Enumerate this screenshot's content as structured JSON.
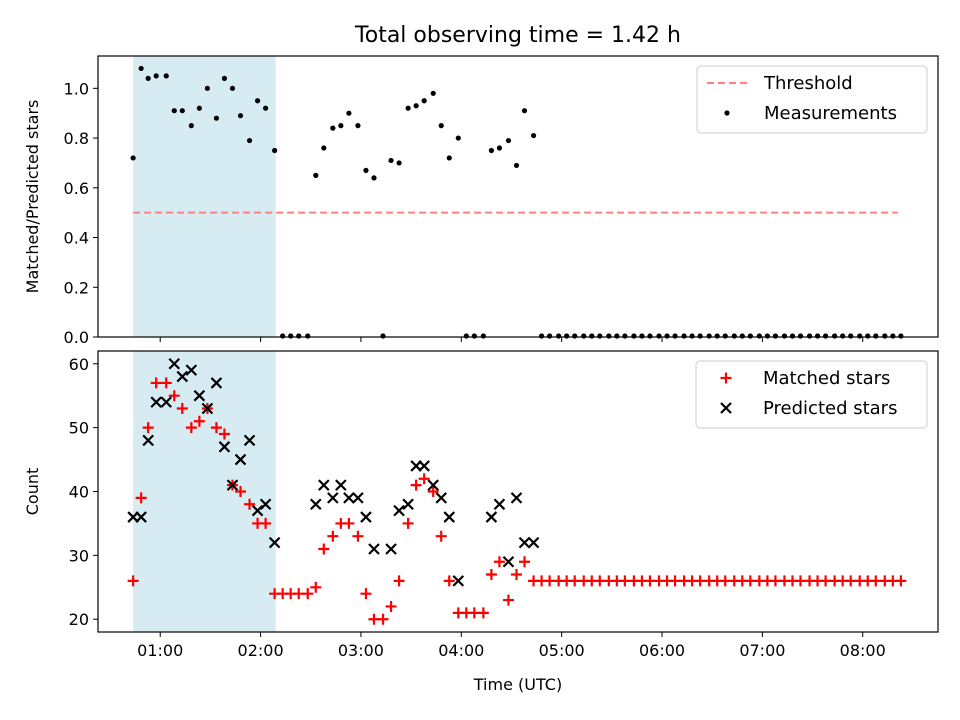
{
  "title": "Total observing time = 1.42 h",
  "colors": {
    "threshold": "#ff8080",
    "measurement": "#000000",
    "matched": "#ff0000",
    "predicted": "#000000",
    "shade": "#add8e6"
  },
  "chart_data": [
    {
      "type": "scatter",
      "ylabel": "Matched/Predicted stars",
      "xlabel": "",
      "xtick_labels": [
        "01:00",
        "02:00",
        "03:00",
        "04:00",
        "05:00",
        "06:00",
        "07:00",
        "08:00"
      ],
      "xlim_hours": [
        0.38,
        8.75
      ],
      "ylim": [
        0,
        1.13
      ],
      "yticks": [
        0.0,
        0.2,
        0.4,
        0.6,
        0.8,
        1.0
      ],
      "ytick_labels": [
        "0.0",
        "0.2",
        "0.4",
        "0.6",
        "0.8",
        "1.0"
      ],
      "shaded_span_hours": [
        0.73,
        2.15
      ],
      "legend": {
        "placement": "top-right",
        "entries": [
          "Threshold",
          "Measurements"
        ]
      },
      "series": [
        {
          "name": "Threshold",
          "kind": "dashed-line",
          "x": [
            0.73,
            8.35
          ],
          "y": [
            0.5,
            0.5
          ]
        },
        {
          "name": "Measurements",
          "kind": "dot",
          "x": [
            0.73,
            0.81,
            0.88,
            0.96,
            1.06,
            1.14,
            1.22,
            1.31,
            1.39,
            1.47,
            1.56,
            1.64,
            1.72,
            1.8,
            1.89,
            1.97,
            2.05,
            2.14,
            2.22,
            2.3,
            2.38,
            2.47,
            2.55,
            2.63,
            2.72,
            2.8,
            2.88,
            2.97,
            3.05,
            3.13,
            3.22,
            3.3,
            3.38,
            3.47,
            3.55,
            3.63,
            3.72,
            3.8,
            3.88,
            3.97,
            4.05,
            4.13,
            4.22,
            4.3,
            4.38,
            4.47,
            4.55,
            4.63,
            4.72,
            4.8,
            4.88,
            4.97,
            5.05,
            5.13,
            5.22,
            5.3,
            5.38,
            5.47,
            5.55,
            5.63,
            5.72,
            5.8,
            5.88,
            5.97,
            6.05,
            6.13,
            6.22,
            6.3,
            6.38,
            6.47,
            6.55,
            6.63,
            6.72,
            6.8,
            6.88,
            6.97,
            7.05,
            7.13,
            7.22,
            7.3,
            7.38,
            7.47,
            7.55,
            7.63,
            7.72,
            7.8,
            7.88,
            7.97,
            8.05,
            8.13,
            8.22,
            8.3,
            8.38
          ],
          "y": [
            0.72,
            1.08,
            1.04,
            1.05,
            1.05,
            0.91,
            0.91,
            0.85,
            0.92,
            1.0,
            0.88,
            1.04,
            1.0,
            0.89,
            0.79,
            0.95,
            0.92,
            0.75,
            0.0,
            0.0,
            0.0,
            0.0,
            0.65,
            0.76,
            0.84,
            0.85,
            0.9,
            0.85,
            0.67,
            0.64,
            0.0,
            0.71,
            0.7,
            0.92,
            0.93,
            0.95,
            0.98,
            0.85,
            0.72,
            0.8,
            0.0,
            0.0,
            0.0,
            0.75,
            0.76,
            0.79,
            0.69,
            0.91,
            0.81,
            0.0,
            0.0,
            0.0,
            0.0,
            0.0,
            0.0,
            0.0,
            0.0,
            0.0,
            0.0,
            0.0,
            0.0,
            0.0,
            0.0,
            0.0,
            0.0,
            0.0,
            0.0,
            0.0,
            0.0,
            0.0,
            0.0,
            0.0,
            0.0,
            0.0,
            0.0,
            0.0,
            0.0,
            0.0,
            0.0,
            0.0,
            0.0,
            0.0,
            0.0,
            0.0,
            0.0,
            0.0,
            0.0,
            0.0,
            0.0,
            0.0,
            0.0,
            0.0,
            0.0
          ]
        }
      ]
    },
    {
      "type": "scatter",
      "ylabel": "Count",
      "xlabel": "Time (UTC)",
      "xtick_labels": [
        "01:00",
        "02:00",
        "03:00",
        "04:00",
        "05:00",
        "06:00",
        "07:00",
        "08:00"
      ],
      "xlim_hours": [
        0.38,
        8.75
      ],
      "ylim": [
        18,
        62
      ],
      "yticks": [
        20,
        30,
        40,
        50,
        60
      ],
      "ytick_labels": [
        "20",
        "30",
        "40",
        "50",
        "60"
      ],
      "shaded_span_hours": [
        0.73,
        2.15
      ],
      "legend": {
        "placement": "top-right",
        "entries": [
          "Matched stars",
          "Predicted stars"
        ]
      },
      "series": [
        {
          "name": "Matched stars",
          "kind": "plus",
          "x": [
            0.73,
            0.81,
            0.88,
            0.96,
            1.06,
            1.14,
            1.22,
            1.31,
            1.39,
            1.47,
            1.56,
            1.64,
            1.72,
            1.8,
            1.89,
            1.97,
            2.05,
            2.14,
            2.22,
            2.3,
            2.38,
            2.47,
            2.55,
            2.63,
            2.72,
            2.8,
            2.88,
            2.97,
            3.05,
            3.13,
            3.22,
            3.3,
            3.38,
            3.47,
            3.55,
            3.63,
            3.72,
            3.8,
            3.88,
            3.97,
            4.05,
            4.13,
            4.22,
            4.3,
            4.38,
            4.47,
            4.55,
            4.63,
            4.72,
            4.8,
            4.88,
            4.97,
            5.05,
            5.13,
            5.22,
            5.3,
            5.38,
            5.47,
            5.55,
            5.63,
            5.72,
            5.8,
            5.88,
            5.97,
            6.05,
            6.13,
            6.22,
            6.3,
            6.38,
            6.47,
            6.55,
            6.63,
            6.72,
            6.8,
            6.88,
            6.97,
            7.05,
            7.13,
            7.22,
            7.3,
            7.38,
            7.47,
            7.55,
            7.63,
            7.72,
            7.8,
            7.88,
            7.97,
            8.05,
            8.13,
            8.22,
            8.3,
            8.38
          ],
          "y": [
            26,
            39,
            50,
            57,
            57,
            55,
            53,
            50,
            51,
            53,
            50,
            49,
            41,
            40,
            38,
            35,
            35,
            24,
            24,
            24,
            24,
            24,
            25,
            31,
            33,
            35,
            35,
            33,
            24,
            20,
            20,
            22,
            26,
            35,
            41,
            42,
            40,
            33,
            26,
            21,
            21,
            21,
            21,
            27,
            29,
            23,
            27,
            29,
            26,
            26,
            26,
            26,
            26,
            26,
            26,
            26,
            26,
            26,
            26,
            26,
            26,
            26,
            26,
            26,
            26,
            26,
            26,
            26,
            26,
            26,
            26,
            26,
            26,
            26,
            26,
            26,
            26,
            26,
            26,
            26,
            26,
            26,
            26,
            26,
            26,
            26,
            26,
            26,
            26,
            26,
            26,
            26,
            26
          ]
        },
        {
          "name": "Predicted stars",
          "kind": "x",
          "x": [
            0.73,
            0.81,
            0.88,
            0.96,
            1.06,
            1.14,
            1.22,
            1.31,
            1.39,
            1.47,
            1.56,
            1.64,
            1.72,
            1.8,
            1.89,
            1.97,
            2.05,
            2.14,
            2.55,
            2.63,
            2.72,
            2.8,
            2.88,
            2.97,
            3.05,
            3.13,
            3.3,
            3.38,
            3.47,
            3.55,
            3.63,
            3.72,
            3.8,
            3.88,
            3.97,
            4.3,
            4.38,
            4.47,
            4.55,
            4.63,
            4.72
          ],
          "y": [
            36,
            36,
            48,
            54,
            54,
            60,
            58,
            59,
            55,
            53,
            57,
            47,
            41,
            45,
            48,
            37,
            38,
            32,
            38,
            41,
            39,
            41,
            39,
            39,
            36,
            31,
            31,
            37,
            38,
            44,
            44,
            41,
            39,
            36,
            26,
            36,
            38,
            29,
            39,
            32,
            32
          ]
        }
      ]
    }
  ]
}
